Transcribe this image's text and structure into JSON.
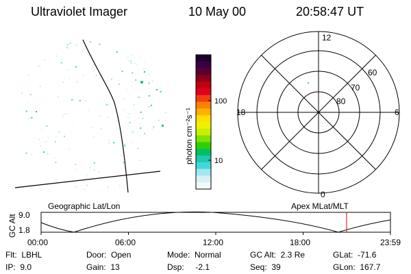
{
  "header": {
    "instrument": "Ultraviolet Imager",
    "date": "10 May 00",
    "time": "20:58:47 UT"
  },
  "colorbar": {
    "unit_label": "photon cm⁻²s⁻¹",
    "ticks": [
      "100",
      "10"
    ],
    "colors": [
      "#1a0030",
      "#3a0040",
      "#5a0030",
      "#8a0018",
      "#c00010",
      "#e00020",
      "#f04010",
      "#ff8000",
      "#ffb000",
      "#ffe000",
      "#f0f000",
      "#c8f000",
      "#80e000",
      "#30d000",
      "#00c060",
      "#20c8b0",
      "#40d8d8",
      "#a0e8f0",
      "#d8f0f4",
      "#f4f8fa"
    ]
  },
  "polar_plot": {
    "clock_labels": [
      "12",
      "18",
      "6",
      "0"
    ],
    "lat_labels": [
      "60",
      "70",
      "80"
    ]
  },
  "altitude_plot": {
    "left_title": "Geographic Lat/Lon",
    "right_title": "Apex MLat/MLT",
    "y_axis_label": "GC Alt",
    "y_ticks": [
      "9.0",
      "1.8"
    ],
    "x_ticks": [
      "00:00",
      "06:00",
      "12:00",
      "18:00",
      "23:59"
    ],
    "marker_color": "#cc0000"
  },
  "footer": {
    "filter": "Flt:  LBHL",
    "ip": "IP:  9.0",
    "door": "Door:  Open",
    "gain": "Gain:  13",
    "mode": "Mode:  Normal",
    "dsp": "Dsp:     -2.1",
    "gc_alt": "GC Alt:  2.3 Re",
    "seq": "Seq:  39",
    "glat": "GLat:  -71.6",
    "glon": "GLon:  167.7"
  }
}
